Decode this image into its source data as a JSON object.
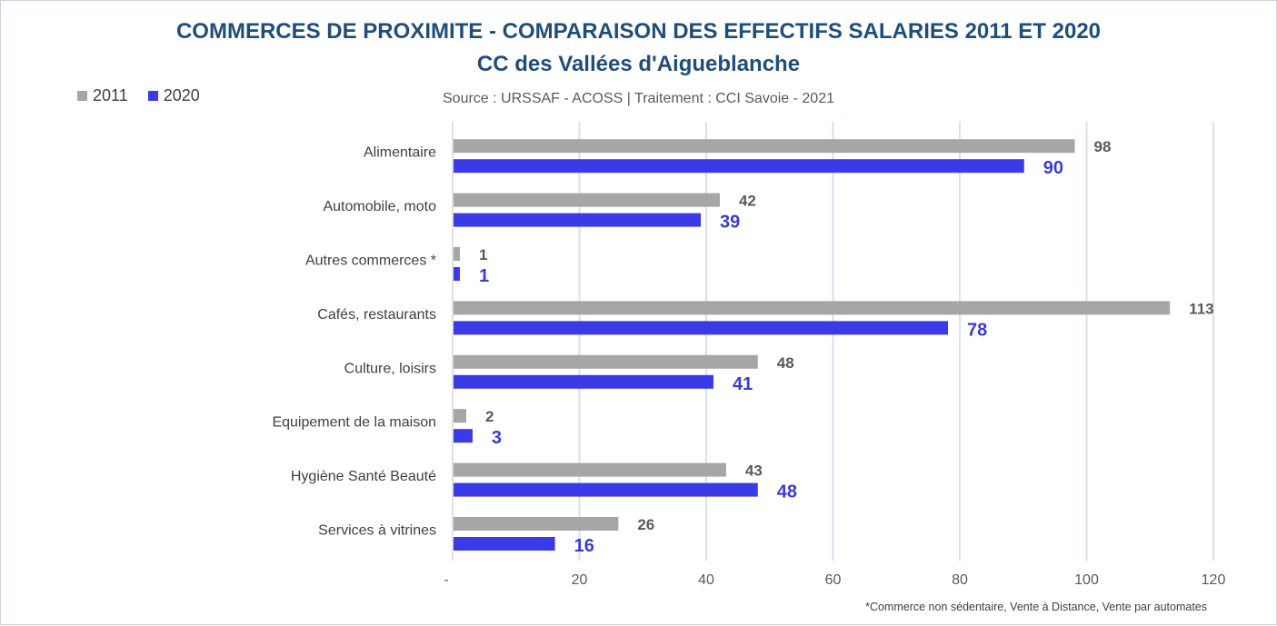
{
  "chart_data": {
    "type": "bar",
    "orientation": "horizontal",
    "title": "COMMERCES DE PROXIMITE - COMPARAISON DES EFFECTIFS SALARIES 2011 ET 2020",
    "subtitle": "CC des Vallées d'Aigueblanche",
    "source": "Source  : URSSAF - ACOSS  |  Traitement : CCI Savoie - 2021",
    "footnote": "*Commerce non sédentaire, Vente à Distance, Vente par automates",
    "categories": [
      "Alimentaire",
      "Automobile, moto",
      "Autres commerces *",
      "Cafés, restaurants",
      "Culture, loisirs",
      "Equipement de la maison",
      "Hygiène Santé Beauté",
      "Services à vitrines"
    ],
    "series": [
      {
        "name": "2011",
        "color": "#a6a6a6",
        "values": [
          98,
          42,
          1,
          113,
          48,
          2,
          43,
          26
        ]
      },
      {
        "name": "2020",
        "color": "#3a3ae6",
        "values": [
          90,
          39,
          1,
          78,
          41,
          3,
          48,
          16
        ]
      }
    ],
    "xlim": [
      0,
      120
    ],
    "x_ticks": [
      0,
      20,
      40,
      60,
      80,
      100,
      120
    ],
    "x_tick_labels": [
      "-",
      "20",
      "40",
      "60",
      "80",
      "100",
      "120"
    ],
    "grid": "vertical",
    "legend_position": "top-left"
  },
  "colors": {
    "title": "#1f4e79",
    "grid": "#d6e2ec",
    "label_2020": "#3a3ad6",
    "label_2011": "#595959"
  }
}
